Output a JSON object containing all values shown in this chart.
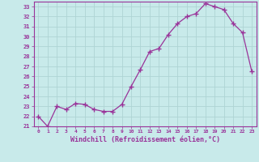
{
  "x": [
    0,
    1,
    2,
    3,
    4,
    5,
    6,
    7,
    8,
    9,
    10,
    11,
    12,
    13,
    14,
    15,
    16,
    17,
    18,
    19,
    20,
    21,
    22,
    23
  ],
  "y": [
    22.0,
    21.0,
    23.0,
    22.7,
    23.3,
    23.2,
    22.7,
    22.5,
    22.5,
    23.2,
    25.0,
    26.7,
    28.5,
    28.8,
    30.2,
    31.3,
    32.0,
    32.3,
    33.3,
    33.0,
    32.7,
    31.3,
    30.4,
    26.5
  ],
  "ylim_min": 21,
  "ylim_max": 33.5,
  "yticks": [
    21,
    22,
    23,
    24,
    25,
    26,
    27,
    28,
    29,
    30,
    31,
    32,
    33
  ],
  "xlabel": "Windchill (Refroidissement éolien,°C)",
  "bg_color": "#c8eaea",
  "grid_color": "#aed4d4",
  "line_color": "#993399",
  "marker_color": "#993399"
}
